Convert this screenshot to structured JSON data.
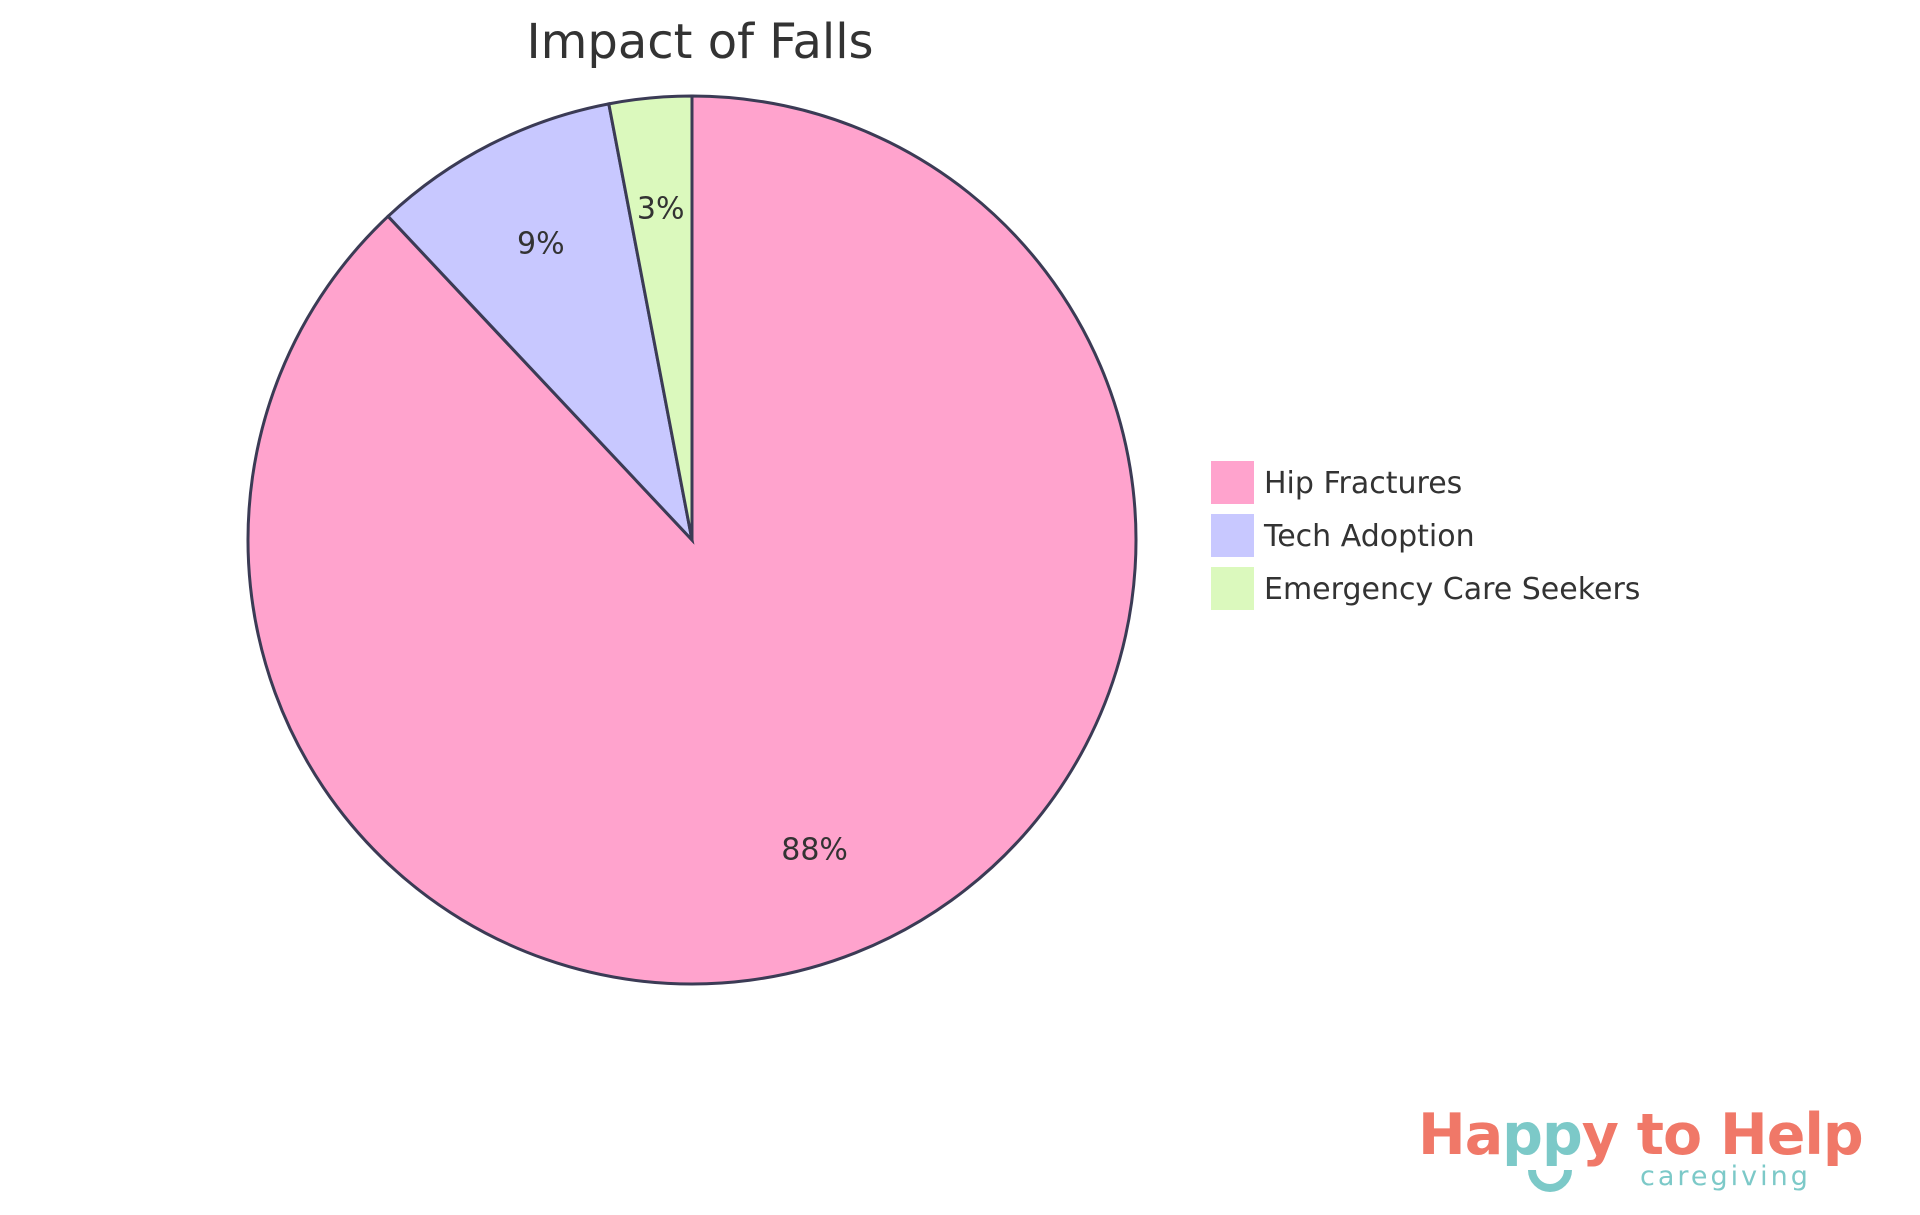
{
  "chart_data": {
    "type": "pie",
    "title": "Impact of Falls",
    "categories": [
      "Hip Fractures",
      "Tech Adoption",
      "Emergency Care Seekers"
    ],
    "values": [
      88,
      9,
      3
    ],
    "labels": [
      "88%",
      "9%",
      "3%"
    ],
    "colors": [
      "#FFA3CD",
      "#C8C8FF",
      "#DBF9BD"
    ],
    "stroke_color": "#3B3B55",
    "legend_position": "right",
    "start_angle_deg": 0,
    "direction": "clockwise"
  },
  "title": "Impact of Falls",
  "slices": [
    {
      "name": "Hip Fractures",
      "label": "88%",
      "color": "#FFA3CD"
    },
    {
      "name": "Tech Adoption",
      "label": "9%",
      "color": "#C8C8FF"
    },
    {
      "name": "Emergency Care Seekers",
      "label": "3%",
      "color": "#DBF9BD"
    }
  ],
  "legend": {
    "items": [
      {
        "label": "Hip Fractures",
        "color": "#FFA3CD"
      },
      {
        "label": "Tech Adoption",
        "color": "#C8C8FF"
      },
      {
        "label": "Emergency Care Seekers",
        "color": "#DBF9BD"
      }
    ]
  },
  "logo": {
    "part1": "Ha",
    "part2": "pp",
    "part3": "y to Help",
    "subtitle": "caregiving",
    "primary_color": "#F07868",
    "accent_color": "#7CC9C8"
  }
}
